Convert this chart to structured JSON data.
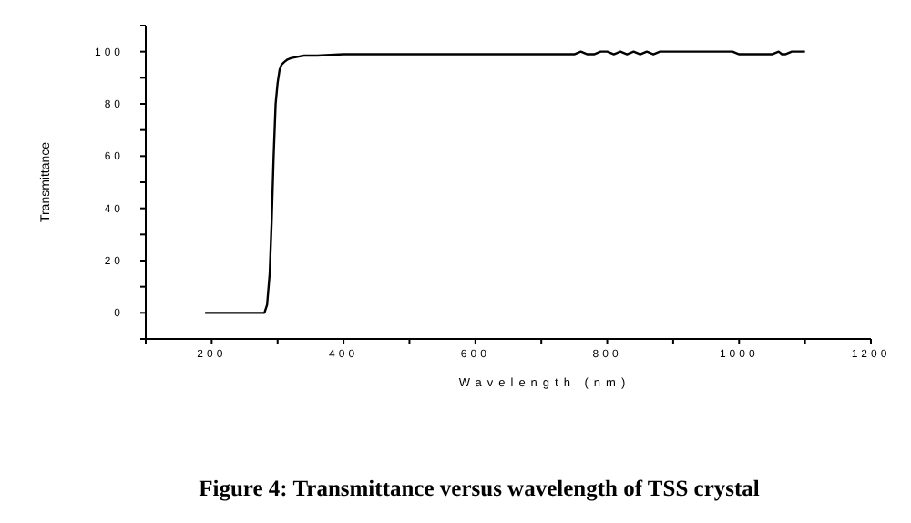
{
  "chart_data": {
    "type": "line",
    "title": "Figure 4: Transmittance versus wavelength of TSS crystal",
    "xlabel": "Wavelength (nm)",
    "ylabel": "Transmittance",
    "x": [
      190,
      250,
      280,
      284,
      288,
      291,
      294,
      297,
      300,
      303,
      306,
      310,
      315,
      320,
      330,
      340,
      360,
      400,
      500,
      600,
      700,
      750,
      760,
      770,
      780,
      790,
      800,
      810,
      820,
      830,
      840,
      850,
      860,
      870,
      880,
      900,
      950,
      990,
      1000,
      1050,
      1060,
      1065,
      1070,
      1080,
      1100
    ],
    "series": [
      {
        "color": "#000000",
        "values": [
          0,
          0,
          0,
          3,
          15,
          35,
          60,
          80,
          88,
          93,
          95,
          96,
          97,
          97.5,
          98,
          98.5,
          98.5,
          99,
          99,
          99,
          99,
          99,
          100,
          99,
          99,
          100,
          100,
          99,
          100,
          99,
          100,
          99,
          100,
          99,
          100,
          100,
          100,
          100,
          99,
          99,
          100,
          99,
          99,
          100,
          100
        ]
      }
    ],
    "xlim": [
      100,
      1200
    ],
    "xticks": [
      {
        "value": 100,
        "label": null
      },
      200,
      {
        "value": 300,
        "label": null
      },
      400,
      {
        "value": 500,
        "label": null
      },
      600,
      {
        "value": 700,
        "label": null
      },
      800,
      {
        "value": 900,
        "label": null
      },
      1000,
      {
        "value": 1100,
        "label": null
      },
      1200
    ],
    "ylim": [
      -10,
      110
    ],
    "yticks": [
      {
        "value": -10,
        "label": null
      },
      0,
      {
        "value": 10,
        "label": null
      },
      20,
      {
        "value": 30,
        "label": null
      },
      40,
      {
        "value": 50,
        "label": null
      },
      60,
      {
        "value": 70,
        "label": null
      },
      80,
      {
        "value": 90,
        "label": null
      },
      100,
      {
        "value": 110,
        "label": null
      }
    ],
    "grid": false,
    "marker": "none",
    "line_style": "solid"
  }
}
